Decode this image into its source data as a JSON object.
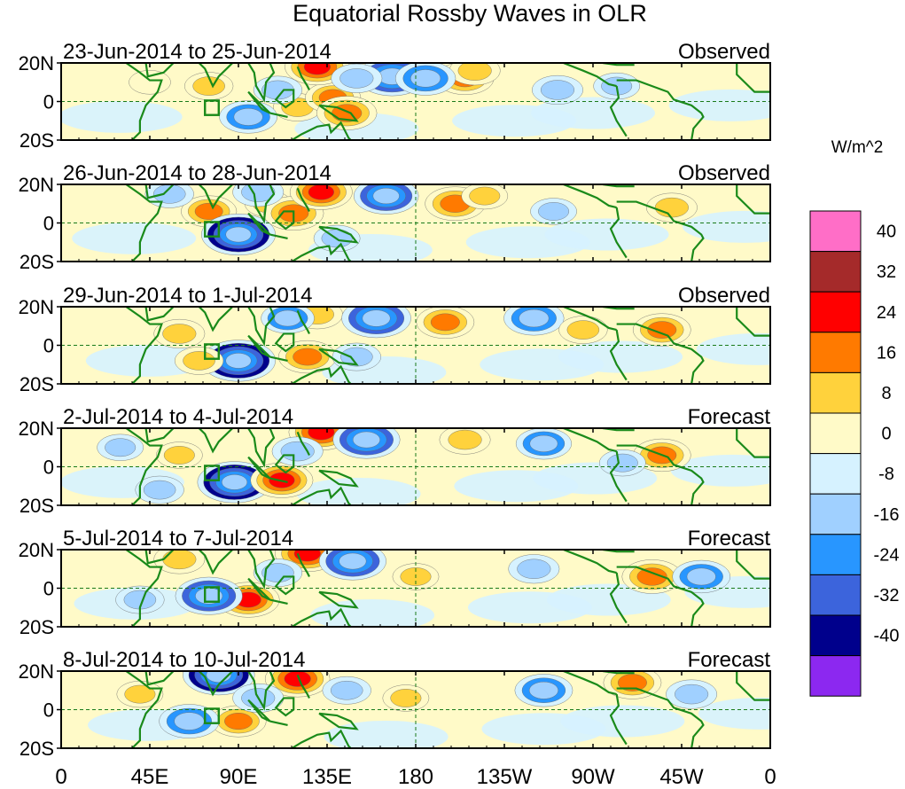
{
  "chart_data": {
    "type": "heatmap",
    "title": "Equatorial Rossby Waves in OLR",
    "units": "W/m^2",
    "x_range": [
      0,
      360
    ],
    "y_range": [
      -20,
      20
    ],
    "x_ticks": [
      "0",
      "45E",
      "90E",
      "135E",
      "180",
      "135W",
      "90W",
      "45W",
      "0"
    ],
    "y_ticks": [
      "20N",
      "0",
      "20S"
    ],
    "colorbar": {
      "levels": [
        -40,
        -32,
        -24,
        -16,
        -8,
        0,
        8,
        16,
        24,
        32,
        40
      ],
      "tick_labels": [
        "40",
        "32",
        "24",
        "16",
        "8",
        "0",
        "-8",
        "-16",
        "-24",
        "-32",
        "-40"
      ],
      "colors_top_to_bottom": [
        "#ff6ec7",
        "#a52a2a",
        "#ff0000",
        "#ff7a00",
        "#ffd23c",
        "#fffac8",
        "#d6f2ff",
        "#a0d0ff",
        "#2896ff",
        "#3c64dc",
        "#00008c",
        "#8c28f0"
      ]
    },
    "panels": [
      {
        "period": "23-Jun-2014 to 25-Jun-2014",
        "kind": "Observed",
        "anomalies": [
          {
            "lon": 205,
            "lat": 12,
            "value": 20
          },
          {
            "lon": 210,
            "lat": 16,
            "value": 14
          },
          {
            "lon": 120,
            "lat": -3,
            "value": 12
          },
          {
            "lon": 138,
            "lat": 2,
            "value": 18
          },
          {
            "lon": 145,
            "lat": -6,
            "value": 22
          },
          {
            "lon": 75,
            "lat": 8,
            "value": 12
          },
          {
            "lon": 130,
            "lat": 18,
            "value": 26
          },
          {
            "lon": 168,
            "lat": 13,
            "value": -30
          },
          {
            "lon": 185,
            "lat": 12,
            "value": -22
          },
          {
            "lon": 95,
            "lat": -8,
            "value": -20
          },
          {
            "lon": 110,
            "lat": 6,
            "value": -12
          },
          {
            "lon": 252,
            "lat": 6,
            "value": -14
          },
          {
            "lon": 282,
            "lat": 8,
            "value": -10
          },
          {
            "lon": 45,
            "lat": 10,
            "value": 6
          },
          {
            "lon": 150,
            "lat": 12,
            "value": -14
          }
        ]
      },
      {
        "period": "26-Jun-2014 to 28-Jun-2014",
        "kind": "Observed",
        "anomalies": [
          {
            "lon": 75,
            "lat": 6,
            "value": 18
          },
          {
            "lon": 105,
            "lat": 10,
            "value": 10
          },
          {
            "lon": 118,
            "lat": 5,
            "value": 22
          },
          {
            "lon": 132,
            "lat": 16,
            "value": 24
          },
          {
            "lon": 90,
            "lat": -6,
            "value": -34
          },
          {
            "lon": 165,
            "lat": 14,
            "value": -26
          },
          {
            "lon": 100,
            "lat": 16,
            "value": -14
          },
          {
            "lon": 200,
            "lat": 10,
            "value": 22
          },
          {
            "lon": 215,
            "lat": 14,
            "value": 10
          },
          {
            "lon": 250,
            "lat": 6,
            "value": -10
          },
          {
            "lon": 310,
            "lat": 8,
            "value": 14
          },
          {
            "lon": 55,
            "lat": 15,
            "value": -12
          },
          {
            "lon": 140,
            "lat": -8,
            "value": -10
          }
        ]
      },
      {
        "period": "29-Jun-2014 to 1-Jul-2014",
        "kind": "Observed",
        "anomalies": [
          {
            "lon": 60,
            "lat": 6,
            "value": 14
          },
          {
            "lon": 90,
            "lat": -8,
            "value": -34
          },
          {
            "lon": 70,
            "lat": -8,
            "value": 12
          },
          {
            "lon": 125,
            "lat": -6,
            "value": 20
          },
          {
            "lon": 130,
            "lat": 16,
            "value": 14
          },
          {
            "lon": 160,
            "lat": 14,
            "value": -30
          },
          {
            "lon": 115,
            "lat": 14,
            "value": -16
          },
          {
            "lon": 195,
            "lat": 12,
            "value": 20
          },
          {
            "lon": 240,
            "lat": 14,
            "value": -22
          },
          {
            "lon": 305,
            "lat": 8,
            "value": 20
          },
          {
            "lon": 150,
            "lat": -6,
            "value": -12
          },
          {
            "lon": 265,
            "lat": 8,
            "value": 12
          }
        ]
      },
      {
        "period": "2-Jul-2014 to 4-Jul-2014",
        "kind": "Forecast",
        "anomalies": [
          {
            "lon": 88,
            "lat": -8,
            "value": -34
          },
          {
            "lon": 112,
            "lat": -7,
            "value": 24
          },
          {
            "lon": 132,
            "lat": 18,
            "value": 26
          },
          {
            "lon": 155,
            "lat": 14,
            "value": -28
          },
          {
            "lon": 120,
            "lat": 8,
            "value": -14
          },
          {
            "lon": 60,
            "lat": 6,
            "value": 10
          },
          {
            "lon": 50,
            "lat": -12,
            "value": -12
          },
          {
            "lon": 205,
            "lat": 14,
            "value": 14
          },
          {
            "lon": 245,
            "lat": 12,
            "value": -18
          },
          {
            "lon": 305,
            "lat": 6,
            "value": 20
          },
          {
            "lon": 285,
            "lat": 2,
            "value": -10
          },
          {
            "lon": 30,
            "lat": 10,
            "value": -10
          }
        ]
      },
      {
        "period": "5-Jul-2014 to 7-Jul-2014",
        "kind": "Forecast",
        "anomalies": [
          {
            "lon": 95,
            "lat": -6,
            "value": 24
          },
          {
            "lon": 75,
            "lat": -4,
            "value": -28
          },
          {
            "lon": 125,
            "lat": 18,
            "value": 26
          },
          {
            "lon": 148,
            "lat": 14,
            "value": -28
          },
          {
            "lon": 60,
            "lat": 15,
            "value": 14
          },
          {
            "lon": 110,
            "lat": 8,
            "value": -12
          },
          {
            "lon": 300,
            "lat": 6,
            "value": 22
          },
          {
            "lon": 325,
            "lat": 6,
            "value": -20
          },
          {
            "lon": 240,
            "lat": 10,
            "value": -14
          },
          {
            "lon": 180,
            "lat": 6,
            "value": 10
          },
          {
            "lon": 40,
            "lat": -6,
            "value": -12
          }
        ]
      },
      {
        "period": "8-Jul-2014 to 10-Jul-2014",
        "kind": "Forecast",
        "anomalies": [
          {
            "lon": 80,
            "lat": 18,
            "value": -32
          },
          {
            "lon": 120,
            "lat": 16,
            "value": 26
          },
          {
            "lon": 90,
            "lat": -6,
            "value": 18
          },
          {
            "lon": 65,
            "lat": -6,
            "value": -22
          },
          {
            "lon": 100,
            "lat": 6,
            "value": -14
          },
          {
            "lon": 145,
            "lat": 10,
            "value": -12
          },
          {
            "lon": 245,
            "lat": 10,
            "value": -20
          },
          {
            "lon": 290,
            "lat": 14,
            "value": 20
          },
          {
            "lon": 320,
            "lat": 8,
            "value": -14
          },
          {
            "lon": 175,
            "lat": 6,
            "value": 10
          },
          {
            "lon": 40,
            "lat": 8,
            "value": 10
          }
        ]
      }
    ]
  }
}
